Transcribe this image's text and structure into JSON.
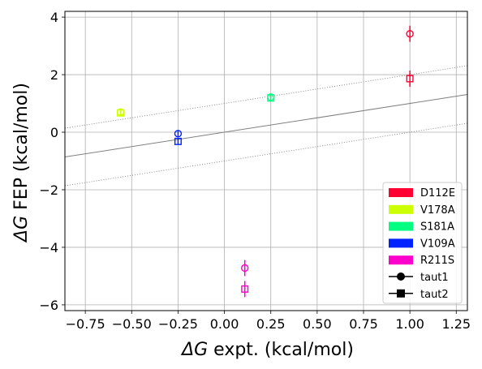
{
  "chart_data": {
    "type": "scatter",
    "xlabel_symbol": "ΔG",
    "xlabel_rest": " expt. (kcal/mol)",
    "ylabel_symbol": "ΔG",
    "ylabel_rest": " FEP (kcal/mol)",
    "xlim": [
      -0.86,
      1.31
    ],
    "ylim": [
      -6.2,
      4.2
    ],
    "x_ticks": [
      -0.75,
      -0.5,
      -0.25,
      0.0,
      0.25,
      0.5,
      0.75,
      1.0,
      1.25
    ],
    "x_tick_labels": [
      "−0.75",
      "−0.50",
      "−0.25",
      "0.00",
      "0.25",
      "0.50",
      "0.75",
      "1.00",
      "1.25"
    ],
    "y_ticks": [
      -6,
      -4,
      -2,
      0,
      2,
      4
    ],
    "y_tick_labels": [
      "−6",
      "−4",
      "−2",
      "0",
      "2",
      "4"
    ],
    "grid": true,
    "legend_position": "bottom-right",
    "reference_lines": [
      {
        "kind": "fit",
        "slope": 1.0,
        "intercept": 0.0,
        "style": "solid",
        "color": "#808080"
      },
      {
        "kind": "band",
        "slope": 1.0,
        "intercept": 1.0,
        "style": "dotted",
        "color": "#808080"
      },
      {
        "kind": "band",
        "slope": 1.0,
        "intercept": -1.0,
        "style": "dotted",
        "color": "#808080"
      }
    ],
    "series": [
      {
        "name": "D112E",
        "color": "#ff0033",
        "x": 1.0,
        "taut1": {
          "y": 3.42,
          "err": 0.28
        },
        "taut2": {
          "y": 1.86,
          "err": 0.28
        }
      },
      {
        "name": "V178A",
        "color": "#ccff00",
        "x": -0.56,
        "taut1": {
          "y": 0.7,
          "err": 0.1
        },
        "taut2": {
          "y": 0.67,
          "err": 0.1
        }
      },
      {
        "name": "S181A",
        "color": "#00ff80",
        "x": 0.25,
        "taut1": {
          "y": 1.22,
          "err": 0.1
        },
        "taut2": {
          "y": 1.19,
          "err": 0.1
        }
      },
      {
        "name": "V109A",
        "color": "#0022ff",
        "x": -0.25,
        "taut1": {
          "y": -0.05,
          "err": 0.1
        },
        "taut2": {
          "y": -0.32,
          "err": 0.1
        }
      },
      {
        "name": "R211S",
        "color": "#ff00cc",
        "x": 0.11,
        "taut1": {
          "y": -4.72,
          "err": 0.28
        },
        "taut2": {
          "y": -5.45,
          "err": 0.28
        }
      }
    ],
    "marker_legend": [
      {
        "name": "taut1",
        "marker": "circle"
      },
      {
        "name": "taut2",
        "marker": "square"
      }
    ]
  }
}
